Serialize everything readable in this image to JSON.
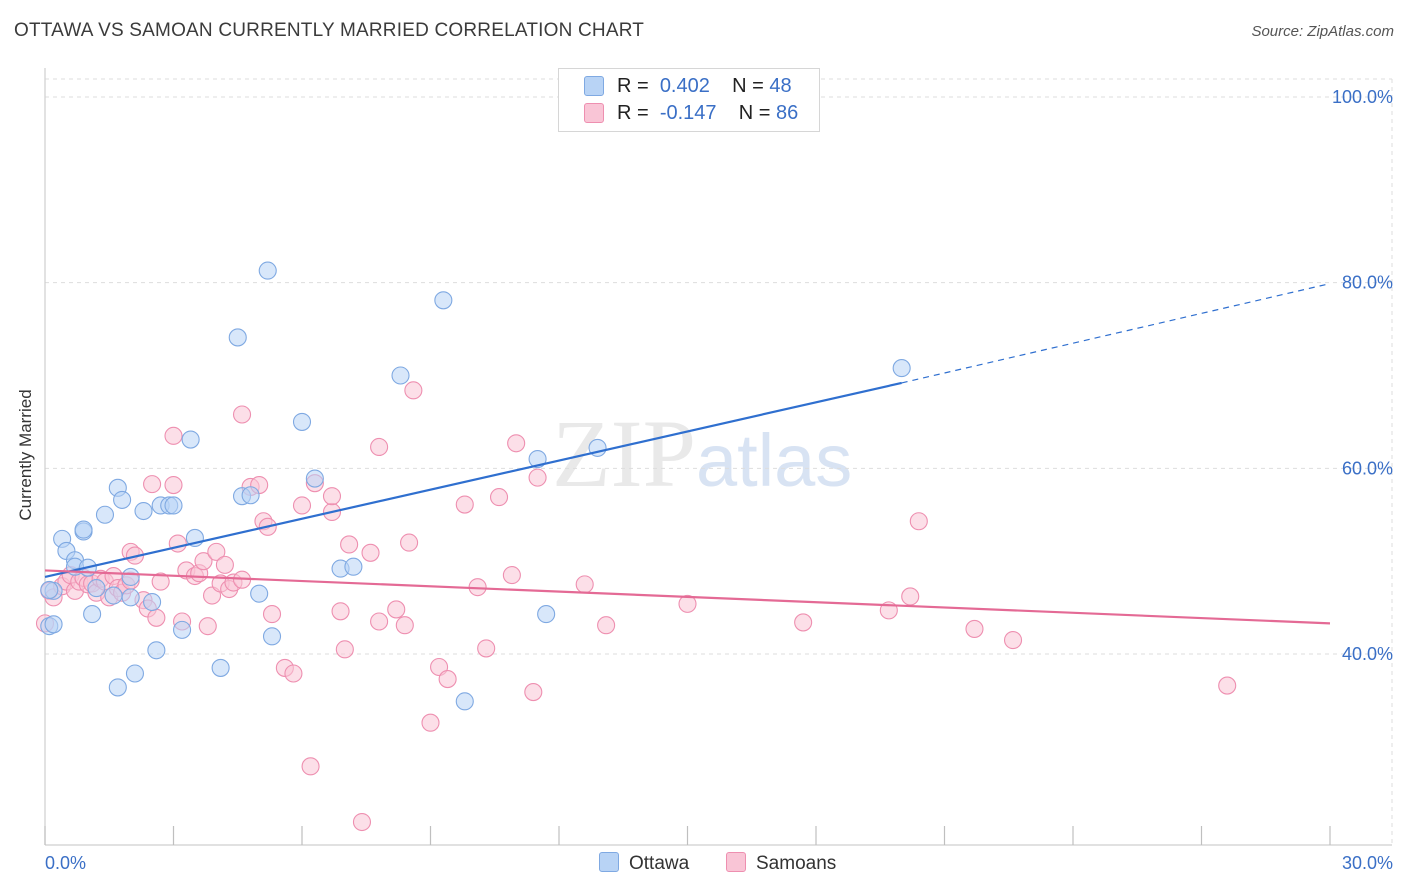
{
  "title": "OTTAWA VS SAMOAN CURRENTLY MARRIED CORRELATION CHART",
  "source": "Source: ZipAtlas.com",
  "watermark": {
    "zip": "ZIP",
    "atlas": "atlas"
  },
  "legend": {
    "rows": [
      {
        "r_label": "R =",
        "r_value": "0.402",
        "n_label": "N =",
        "n_value": "48"
      },
      {
        "r_label": "R =",
        "r_value": "-0.147",
        "n_label": "N =",
        "n_value": "86"
      }
    ]
  },
  "bottom_legend": {
    "ottawa": "Ottawa",
    "samoans": "Samoans"
  },
  "colors": {
    "ottawa_fill": "#b8d3f5",
    "ottawa_stroke": "#7fa9e2",
    "ottawa_line": "#2f6fcf",
    "samoan_fill": "#f9c5d6",
    "samoan_stroke": "#ee8fb0",
    "samoan_line": "#e46a95",
    "tick_text": "#3a6fc6",
    "grid": "#dddddd"
  },
  "chart_data": {
    "type": "scatter",
    "title": "OTTAWA VS SAMOAN CURRENTLY MARRIED CORRELATION CHART",
    "xlabel": "",
    "ylabel": "Currently Married",
    "xlim": [
      0,
      30
    ],
    "ylim": [
      20,
      102
    ],
    "x_tick_labels": [
      {
        "value": 0,
        "label": "0.0%"
      },
      {
        "value": 30,
        "label": "30.0%"
      }
    ],
    "y_tick_labels": [
      {
        "value": 40,
        "label": "40.0%"
      },
      {
        "value": 60,
        "label": "60.0%"
      },
      {
        "value": 80,
        "label": "80.0%"
      },
      {
        "value": 100,
        "label": "100.0%"
      }
    ],
    "series": [
      {
        "name": "Ottawa",
        "r": 0.402,
        "n": 48,
        "trend": {
          "x0": 0,
          "y0": 48.3,
          "x1": 20.0,
          "y1": 69.2,
          "dash_to_x": 30,
          "dash_to_y": 79.9
        },
        "points": [
          [
            0.1,
            43.0
          ],
          [
            0.2,
            46.8
          ],
          [
            0.2,
            43.2
          ],
          [
            0.4,
            52.4
          ],
          [
            0.5,
            51.1
          ],
          [
            0.7,
            50.1
          ],
          [
            0.7,
            49.4
          ],
          [
            0.9,
            53.2
          ],
          [
            0.9,
            53.4
          ],
          [
            1.0,
            49.3
          ],
          [
            1.1,
            44.3
          ],
          [
            1.2,
            47.1
          ],
          [
            1.4,
            55.0
          ],
          [
            1.6,
            46.3
          ],
          [
            1.7,
            57.9
          ],
          [
            1.7,
            36.4
          ],
          [
            1.8,
            56.6
          ],
          [
            2.0,
            46.1
          ],
          [
            2.0,
            48.3
          ],
          [
            2.1,
            37.9
          ],
          [
            2.3,
            55.4
          ],
          [
            2.5,
            45.6
          ],
          [
            2.6,
            40.4
          ],
          [
            2.7,
            56.0
          ],
          [
            2.9,
            56.0
          ],
          [
            3.0,
            56.0
          ],
          [
            3.2,
            42.6
          ],
          [
            3.4,
            63.1
          ],
          [
            3.5,
            52.5
          ],
          [
            4.1,
            38.5
          ],
          [
            4.5,
            74.1
          ],
          [
            4.6,
            57.0
          ],
          [
            4.8,
            57.1
          ],
          [
            5.0,
            46.5
          ],
          [
            5.2,
            81.3
          ],
          [
            5.3,
            41.9
          ],
          [
            6.0,
            65.0
          ],
          [
            6.3,
            58.9
          ],
          [
            6.9,
            49.2
          ],
          [
            7.2,
            49.4
          ],
          [
            8.3,
            70.0
          ],
          [
            9.3,
            78.1
          ],
          [
            9.8,
            34.9
          ],
          [
            11.5,
            61.0
          ],
          [
            11.7,
            44.3
          ],
          [
            12.9,
            62.2
          ],
          [
            20.0,
            70.8
          ],
          [
            0.1,
            46.9
          ]
        ]
      },
      {
        "name": "Samoans",
        "r": -0.147,
        "n": 86,
        "trend": {
          "x0": 0,
          "y0": 49.0,
          "x1": 30,
          "y1": 43.3
        },
        "points": [
          [
            0.0,
            43.3
          ],
          [
            0.1,
            46.8
          ],
          [
            0.2,
            46.1
          ],
          [
            0.4,
            47.3
          ],
          [
            0.5,
            47.8
          ],
          [
            0.6,
            48.5
          ],
          [
            0.7,
            46.8
          ],
          [
            0.8,
            47.8
          ],
          [
            0.9,
            48.2
          ],
          [
            1.0,
            47.5
          ],
          [
            1.1,
            47.6
          ],
          [
            1.2,
            46.6
          ],
          [
            1.3,
            48.1
          ],
          [
            1.4,
            47.8
          ],
          [
            1.5,
            46.1
          ],
          [
            1.6,
            48.4
          ],
          [
            1.7,
            47.1
          ],
          [
            1.8,
            46.6
          ],
          [
            1.9,
            47.4
          ],
          [
            2.0,
            51.0
          ],
          [
            2.0,
            47.9
          ],
          [
            2.1,
            50.6
          ],
          [
            2.3,
            45.8
          ],
          [
            2.4,
            44.9
          ],
          [
            2.5,
            58.3
          ],
          [
            2.6,
            43.9
          ],
          [
            2.7,
            47.8
          ],
          [
            3.0,
            63.5
          ],
          [
            3.0,
            58.2
          ],
          [
            3.1,
            51.9
          ],
          [
            3.2,
            43.5
          ],
          [
            3.3,
            49.0
          ],
          [
            3.5,
            48.4
          ],
          [
            3.6,
            48.7
          ],
          [
            3.7,
            50.0
          ],
          [
            3.8,
            43.0
          ],
          [
            3.9,
            46.3
          ],
          [
            4.0,
            51.0
          ],
          [
            4.1,
            47.6
          ],
          [
            4.2,
            49.6
          ],
          [
            4.3,
            47.0
          ],
          [
            4.4,
            47.7
          ],
          [
            4.6,
            65.8
          ],
          [
            4.6,
            48.0
          ],
          [
            4.8,
            58.0
          ],
          [
            5.0,
            58.2
          ],
          [
            5.1,
            54.3
          ],
          [
            5.2,
            53.7
          ],
          [
            5.3,
            44.3
          ],
          [
            5.6,
            38.5
          ],
          [
            5.8,
            37.9
          ],
          [
            6.0,
            56.0
          ],
          [
            6.2,
            27.9
          ],
          [
            6.3,
            58.4
          ],
          [
            6.7,
            55.3
          ],
          [
            6.7,
            57.0
          ],
          [
            6.9,
            44.6
          ],
          [
            7.0,
            40.5
          ],
          [
            7.1,
            51.8
          ],
          [
            7.4,
            21.9
          ],
          [
            7.6,
            50.9
          ],
          [
            7.8,
            62.3
          ],
          [
            7.8,
            43.5
          ],
          [
            8.2,
            44.8
          ],
          [
            8.4,
            43.1
          ],
          [
            8.5,
            52.0
          ],
          [
            8.6,
            68.4
          ],
          [
            9.0,
            32.6
          ],
          [
            9.2,
            38.6
          ],
          [
            9.4,
            37.3
          ],
          [
            9.8,
            56.1
          ],
          [
            10.1,
            47.2
          ],
          [
            10.3,
            40.6
          ],
          [
            10.6,
            56.9
          ],
          [
            10.9,
            48.5
          ],
          [
            11.0,
            62.7
          ],
          [
            11.4,
            35.9
          ],
          [
            11.5,
            59.0
          ],
          [
            12.6,
            47.5
          ],
          [
            13.1,
            43.1
          ],
          [
            15.0,
            45.4
          ],
          [
            17.7,
            43.4
          ],
          [
            19.7,
            44.7
          ],
          [
            20.2,
            46.2
          ],
          [
            20.4,
            54.3
          ],
          [
            21.7,
            42.7
          ],
          [
            22.6,
            41.5
          ],
          [
            27.6,
            36.6
          ]
        ]
      }
    ]
  }
}
